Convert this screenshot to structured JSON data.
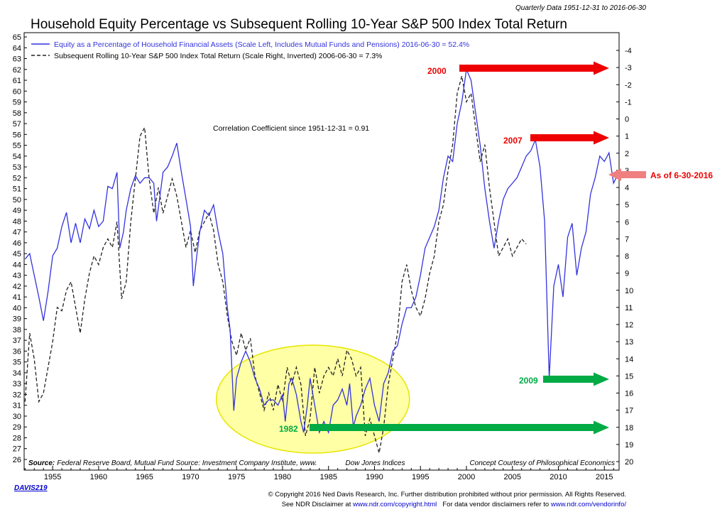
{
  "header": {
    "title": "Household Equity Percentage vs Subsequent Rolling 10-Year S&P 500 Index Total Return",
    "frequency_note": "Quarterly Data 1951-12-31 to 2016-06-30"
  },
  "legend": {
    "equity_series": "Equity as a Percentage of Household Financial Assets (Scale Left, Includes Mutual Funds and Pensions) 2016-06-30 = 52.4%",
    "return_series": "Subsequent Rolling 10-Year S&P 500 Index Total Return (Scale Right, Inverted) 2006-06-30 = 7.3%"
  },
  "correlation_note": "Correlation Coefficient since 1951-12-31 = 0.91",
  "source_note": "Source: Federal Reserve Board, Mutual Fund Source: Investment Company Institute, www.",
  "source_note_tail": "Dow Jones Indices",
  "concept_note": "Concept Courtesy of Philosophical Economics",
  "annotations": {
    "label_2000": "2000",
    "label_2007": "2007",
    "label_2009": "2009",
    "label_1982": "1982",
    "label_current": "As of 6-30-2016"
  },
  "footer": {
    "code": "DAVIS219",
    "copyright": "© Copyright 2016 Ned Davis Research, Inc. Further distribution prohibited without prior permission. All Rights Reserved.",
    "disclaimer_prefix": "See NDR Disclaimer at ",
    "disclaimer_link": "www.ndr.com/copyright.html",
    "vendor_prefix": "For data vendor disclaimers refer to ",
    "vendor_link": "www.ndr.com/vendorinfo/"
  },
  "colors": {
    "equity_line": "#3333dd",
    "return_line": "#222222",
    "red_arrow": "#ee0000",
    "green_arrow": "#00aa44",
    "pink_arrow": "#f08080",
    "highlight_ellipse": "#ffff88",
    "link": "#0000cc"
  },
  "chart_data": {
    "type": "line",
    "x_ticks": [
      1955,
      1960,
      1965,
      1970,
      1975,
      1980,
      1985,
      1990,
      1995,
      2000,
      2005,
      2010,
      2015
    ],
    "xlim": [
      1951.9,
      2016.6
    ],
    "left_ylim": [
      26,
      65
    ],
    "left_ticks": [
      26,
      27,
      28,
      29,
      30,
      31,
      32,
      33,
      34,
      35,
      36,
      37,
      38,
      39,
      40,
      41,
      42,
      43,
      44,
      45,
      46,
      47,
      48,
      49,
      50,
      51,
      52,
      53,
      54,
      55,
      56,
      57,
      58,
      59,
      60,
      61,
      62,
      63,
      64,
      65
    ],
    "right_ylim_inverted": [
      -4.9,
      20
    ],
    "right_ticks": [
      -4,
      -3,
      -2,
      -1,
      0,
      1,
      2,
      3,
      4,
      5,
      6,
      7,
      8,
      9,
      10,
      11,
      12,
      13,
      14,
      15,
      16,
      17,
      18,
      19,
      20
    ],
    "grid": false,
    "series": [
      {
        "name": "Equity as a Percentage of Household Financial Assets (Scale Left, Includes Mutual Funds and Pensions) 2016-06-30 = 52.4%",
        "axis": "left",
        "points": [
          [
            1952.0,
            44.5
          ],
          [
            1952.5,
            45.0
          ],
          [
            1953.0,
            43.0
          ],
          [
            1953.5,
            41.0
          ],
          [
            1954.0,
            38.8
          ],
          [
            1954.5,
            41.5
          ],
          [
            1955.0,
            44.8
          ],
          [
            1955.5,
            45.5
          ],
          [
            1956.0,
            47.5
          ],
          [
            1956.5,
            48.8
          ],
          [
            1957.0,
            46.0
          ],
          [
            1957.5,
            47.8
          ],
          [
            1958.0,
            46.0
          ],
          [
            1958.5,
            48.2
          ],
          [
            1959.0,
            47.3
          ],
          [
            1959.5,
            49.0
          ],
          [
            1960.0,
            47.5
          ],
          [
            1960.5,
            48.0
          ],
          [
            1961.0,
            51.2
          ],
          [
            1961.5,
            51.0
          ],
          [
            1962.0,
            52.5
          ],
          [
            1962.3,
            45.5
          ],
          [
            1962.7,
            47.0
          ],
          [
            1963.0,
            49.0
          ],
          [
            1963.5,
            51.0
          ],
          [
            1964.0,
            52.2
          ],
          [
            1964.5,
            51.5
          ],
          [
            1965.0,
            52.0
          ],
          [
            1965.5,
            52.0
          ],
          [
            1966.0,
            51.5
          ],
          [
            1966.3,
            48.0
          ],
          [
            1966.7,
            50.5
          ],
          [
            1967.0,
            52.5
          ],
          [
            1967.5,
            53.0
          ],
          [
            1968.0,
            54.0
          ],
          [
            1968.5,
            55.2
          ],
          [
            1969.0,
            52.5
          ],
          [
            1969.5,
            50.0
          ],
          [
            1970.0,
            47.5
          ],
          [
            1970.3,
            42.0
          ],
          [
            1970.7,
            45.0
          ],
          [
            1971.0,
            47.0
          ],
          [
            1971.5,
            49.0
          ],
          [
            1972.0,
            48.5
          ],
          [
            1972.5,
            49.5
          ],
          [
            1973.0,
            47.0
          ],
          [
            1973.5,
            45.0
          ],
          [
            1974.0,
            40.0
          ],
          [
            1974.3,
            38.0
          ],
          [
            1974.7,
            30.5
          ],
          [
            1975.0,
            33.5
          ],
          [
            1975.5,
            35.0
          ],
          [
            1976.0,
            36.0
          ],
          [
            1976.5,
            35.0
          ],
          [
            1977.0,
            33.5
          ],
          [
            1977.5,
            32.5
          ],
          [
            1978.0,
            31.0
          ],
          [
            1978.5,
            31.5
          ],
          [
            1979.0,
            31.5
          ],
          [
            1979.5,
            31.0
          ],
          [
            1980.0,
            32.0
          ],
          [
            1980.3,
            29.5
          ],
          [
            1980.7,
            33.0
          ],
          [
            1981.0,
            33.5
          ],
          [
            1981.5,
            32.0
          ],
          [
            1982.0,
            29.5
          ],
          [
            1982.3,
            28.5
          ],
          [
            1982.7,
            31.0
          ],
          [
            1983.0,
            33.5
          ],
          [
            1983.5,
            31.0
          ],
          [
            1984.0,
            28.5
          ],
          [
            1984.5,
            29.5
          ],
          [
            1985.0,
            28.5
          ],
          [
            1985.5,
            31.0
          ],
          [
            1986.0,
            31.5
          ],
          [
            1986.5,
            32.5
          ],
          [
            1987.0,
            31.0
          ],
          [
            1987.3,
            33.0
          ],
          [
            1987.7,
            29.0
          ],
          [
            1988.0,
            30.0
          ],
          [
            1988.5,
            31.0
          ],
          [
            1989.0,
            32.5
          ],
          [
            1989.5,
            33.5
          ],
          [
            1990.0,
            31.0
          ],
          [
            1990.5,
            29.5
          ],
          [
            1991.0,
            33.0
          ],
          [
            1991.5,
            34.0
          ],
          [
            1992.0,
            36.0
          ],
          [
            1992.5,
            36.5
          ],
          [
            1993.0,
            38.5
          ],
          [
            1993.5,
            40.0
          ],
          [
            1994.0,
            40.0
          ],
          [
            1994.5,
            41.0
          ],
          [
            1995.0,
            43.0
          ],
          [
            1995.5,
            45.5
          ],
          [
            1996.0,
            46.5
          ],
          [
            1996.5,
            47.5
          ],
          [
            1997.0,
            49.0
          ],
          [
            1997.5,
            52.0
          ],
          [
            1998.0,
            54.0
          ],
          [
            1998.5,
            53.5
          ],
          [
            1999.0,
            57.0
          ],
          [
            1999.5,
            59.0
          ],
          [
            2000.0,
            62.0
          ],
          [
            2000.5,
            61.0
          ],
          [
            2001.0,
            58.0
          ],
          [
            2001.5,
            55.0
          ],
          [
            2002.0,
            51.0
          ],
          [
            2002.5,
            48.0
          ],
          [
            2003.0,
            45.5
          ],
          [
            2003.5,
            48.0
          ],
          [
            2004.0,
            50.0
          ],
          [
            2004.5,
            51.0
          ],
          [
            2005.0,
            51.5
          ],
          [
            2005.5,
            52.0
          ],
          [
            2006.0,
            53.0
          ],
          [
            2006.5,
            54.0
          ],
          [
            2007.0,
            54.5
          ],
          [
            2007.5,
            55.5
          ],
          [
            2008.0,
            53.0
          ],
          [
            2008.5,
            48.0
          ],
          [
            2009.0,
            33.5
          ],
          [
            2009.5,
            42.0
          ],
          [
            2010.0,
            44.0
          ],
          [
            2010.5,
            41.0
          ],
          [
            2011.0,
            46.5
          ],
          [
            2011.5,
            47.8
          ],
          [
            2012.0,
            43.0
          ],
          [
            2012.5,
            45.5
          ],
          [
            2013.0,
            47.0
          ],
          [
            2013.5,
            50.5
          ],
          [
            2014.0,
            52.0
          ],
          [
            2014.5,
            54.0
          ],
          [
            2015.0,
            53.5
          ],
          [
            2015.5,
            54.3
          ],
          [
            2016.0,
            51.5
          ],
          [
            2016.5,
            52.4
          ]
        ]
      },
      {
        "name": "Subsequent Rolling 10-Year S&P 500 Index Total Return (Scale Right, Inverted) 2006-06-30 = 7.3%",
        "axis": "right",
        "points": [
          [
            1952.0,
            16.5
          ],
          [
            1952.5,
            12.5
          ],
          [
            1953.0,
            14.0
          ],
          [
            1953.5,
            16.5
          ],
          [
            1954.0,
            16.0
          ],
          [
            1954.5,
            14.5
          ],
          [
            1955.0,
            13.0
          ],
          [
            1955.5,
            11.0
          ],
          [
            1956.0,
            11.2
          ],
          [
            1956.5,
            10.0
          ],
          [
            1957.0,
            9.5
          ],
          [
            1957.5,
            11.0
          ],
          [
            1958.0,
            12.5
          ],
          [
            1958.5,
            10.5
          ],
          [
            1959.0,
            9.0
          ],
          [
            1959.5,
            8.0
          ],
          [
            1960.0,
            8.5
          ],
          [
            1960.5,
            7.5
          ],
          [
            1961.0,
            7.0
          ],
          [
            1961.5,
            7.5
          ],
          [
            1962.0,
            6.0
          ],
          [
            1962.5,
            10.5
          ],
          [
            1963.0,
            9.5
          ],
          [
            1963.5,
            6.0
          ],
          [
            1964.0,
            3.5
          ],
          [
            1964.5,
            1.0
          ],
          [
            1965.0,
            0.5
          ],
          [
            1965.5,
            3.5
          ],
          [
            1966.0,
            5.5
          ],
          [
            1966.5,
            4.0
          ],
          [
            1967.0,
            5.5
          ],
          [
            1967.5,
            4.5
          ],
          [
            1968.0,
            3.5
          ],
          [
            1968.5,
            4.5
          ],
          [
            1969.0,
            6.0
          ],
          [
            1969.5,
            7.5
          ],
          [
            1970.0,
            6.5
          ],
          [
            1970.5,
            7.8
          ],
          [
            1971.0,
            6.5
          ],
          [
            1971.5,
            6.0
          ],
          [
            1972.0,
            5.5
          ],
          [
            1972.5,
            6.5
          ],
          [
            1973.0,
            8.5
          ],
          [
            1973.5,
            9.5
          ],
          [
            1974.0,
            11.5
          ],
          [
            1974.5,
            13.0
          ],
          [
            1975.0,
            13.8
          ],
          [
            1975.5,
            12.5
          ],
          [
            1976.0,
            13.5
          ],
          [
            1976.5,
            12.8
          ],
          [
            1977.0,
            15.0
          ],
          [
            1977.5,
            16.0
          ],
          [
            1978.0,
            17.0
          ],
          [
            1978.5,
            16.0
          ],
          [
            1979.0,
            17.0
          ],
          [
            1979.5,
            15.5
          ],
          [
            1980.0,
            16.5
          ],
          [
            1980.5,
            14.5
          ],
          [
            1981.0,
            15.5
          ],
          [
            1981.5,
            14.5
          ],
          [
            1982.0,
            15.5
          ],
          [
            1982.5,
            18.5
          ],
          [
            1983.0,
            17.5
          ],
          [
            1983.5,
            14.5
          ],
          [
            1984.0,
            16.0
          ],
          [
            1984.5,
            15.0
          ],
          [
            1985.0,
            14.5
          ],
          [
            1985.5,
            15.0
          ],
          [
            1986.0,
            14.0
          ],
          [
            1986.5,
            15.0
          ],
          [
            1987.0,
            13.5
          ],
          [
            1987.5,
            14.0
          ],
          [
            1988.0,
            15.0
          ],
          [
            1988.5,
            14.5
          ],
          [
            1989.0,
            18.5
          ],
          [
            1989.5,
            17.5
          ],
          [
            1990.0,
            18.5
          ],
          [
            1990.5,
            19.5
          ],
          [
            1991.0,
            18.0
          ],
          [
            1991.5,
            15.5
          ],
          [
            1992.0,
            14.0
          ],
          [
            1992.5,
            12.5
          ],
          [
            1993.0,
            9.5
          ],
          [
            1993.5,
            8.5
          ],
          [
            1994.0,
            10.0
          ],
          [
            1994.5,
            11.0
          ],
          [
            1995.0,
            11.5
          ],
          [
            1995.5,
            10.5
          ],
          [
            1996.0,
            9.0
          ],
          [
            1996.5,
            8.0
          ],
          [
            1997.0,
            6.0
          ],
          [
            1997.5,
            5.0
          ],
          [
            1998.0,
            3.0
          ],
          [
            1998.5,
            1.5
          ],
          [
            1999.0,
            -1.5
          ],
          [
            1999.5,
            -2.5
          ],
          [
            2000.0,
            -1.0
          ],
          [
            2000.5,
            -1.5
          ],
          [
            2001.0,
            0.5
          ],
          [
            2001.5,
            2.5
          ],
          [
            2002.0,
            1.5
          ],
          [
            2002.5,
            4.0
          ],
          [
            2003.0,
            6.0
          ],
          [
            2003.5,
            8.0
          ],
          [
            2004.0,
            7.5
          ],
          [
            2004.5,
            7.0
          ],
          [
            2005.0,
            8.0
          ],
          [
            2005.5,
            7.5
          ],
          [
            2006.0,
            7.0
          ],
          [
            2006.5,
            7.3
          ]
        ]
      }
    ]
  }
}
